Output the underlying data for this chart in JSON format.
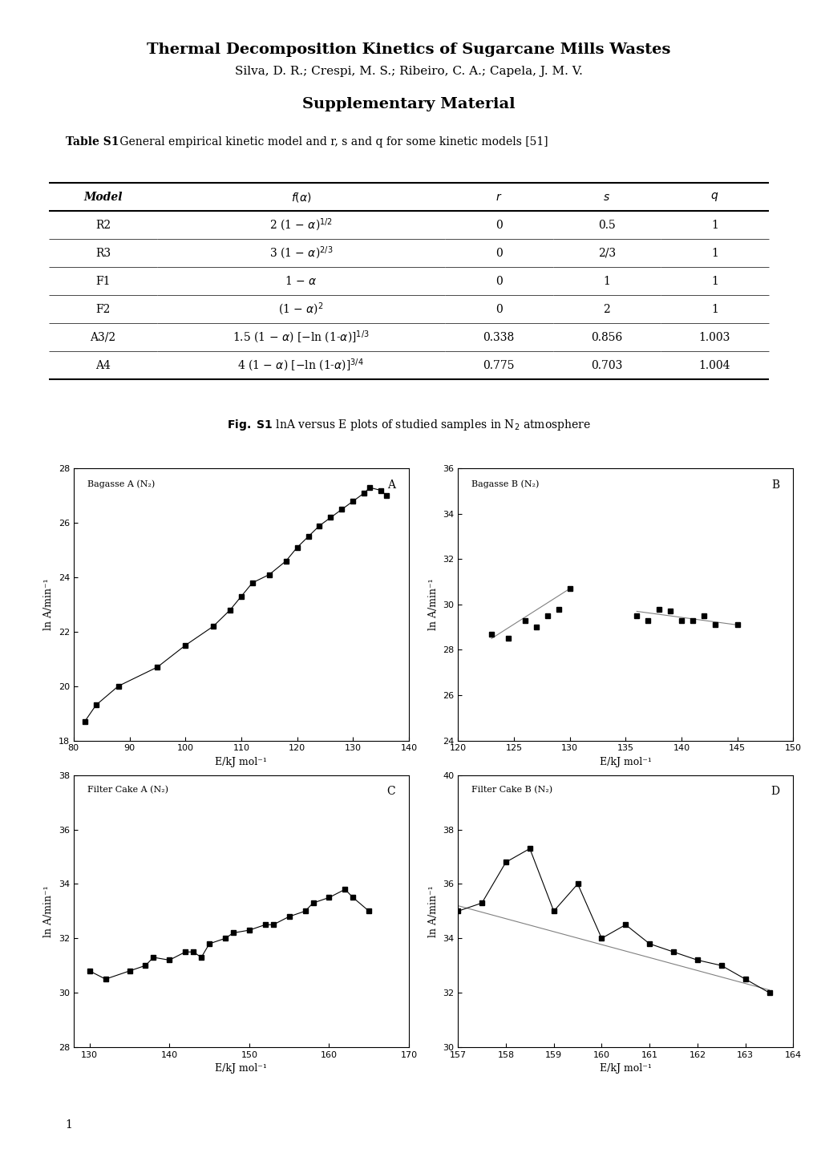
{
  "title": "Thermal Decomposition Kinetics of Sugarcane Mills Wastes",
  "authors": "Silva, D. R.; Crespi, M. S.; Ribeiro, C. A.; Capela, J. M. V.",
  "supp_title": "Supplementary Material",
  "table_caption_bold": "Table S1",
  "table_caption_normal": " General empirical kinetic model and r, s and q for some kinetic models [51]",
  "fig_caption": "Fig. S1 lnA versus E plots of studied samples in N₂ atmosphere",
  "plot_A": {
    "label": "Bagasse A (N₂)",
    "letter": "A",
    "x": [
      82,
      84,
      88,
      95,
      100,
      105,
      108,
      110,
      112,
      115,
      118,
      120,
      122,
      124,
      126,
      128,
      130,
      132,
      133,
      135,
      136
    ],
    "y": [
      18.7,
      19.3,
      20.0,
      20.7,
      21.5,
      22.2,
      22.8,
      23.3,
      23.8,
      24.1,
      24.6,
      25.1,
      25.5,
      25.9,
      26.2,
      26.5,
      26.8,
      27.1,
      27.3,
      27.2,
      27.0
    ],
    "xlim": [
      80,
      140
    ],
    "ylim": [
      18,
      28
    ],
    "xticks": [
      80,
      90,
      100,
      110,
      120,
      130,
      140
    ],
    "yticks": [
      18,
      20,
      22,
      24,
      26,
      28
    ],
    "xlabel": "E/kJ mol⁻¹",
    "ylabel": "ln A/min⁻¹"
  },
  "plot_B": {
    "label": "Bagasse B (N₂)",
    "letter": "B",
    "seg1_x": [
      123,
      124.5,
      126,
      127,
      128,
      129,
      130
    ],
    "seg1_y": [
      28.7,
      28.5,
      29.3,
      29.0,
      29.5,
      29.8,
      30.7
    ],
    "seg2_x": [
      136,
      137,
      138,
      139,
      140,
      141,
      142,
      143,
      145
    ],
    "seg2_y": [
      29.5,
      29.3,
      29.8,
      29.7,
      29.3,
      29.3,
      29.5,
      29.1,
      29.1
    ],
    "line1_x": [
      123,
      130
    ],
    "line1_y": [
      28.5,
      30.7
    ],
    "line2_x": [
      136,
      145
    ],
    "line2_y": [
      29.7,
      29.1
    ],
    "xlim": [
      120,
      150
    ],
    "ylim": [
      24,
      36
    ],
    "xticks": [
      120,
      125,
      130,
      135,
      140,
      145,
      150
    ],
    "yticks": [
      24,
      26,
      28,
      30,
      32,
      34,
      36
    ],
    "xlabel": "E/kJ mol⁻¹",
    "ylabel": "ln A/min⁻¹"
  },
  "plot_C": {
    "label": "Filter Cake A (N₂)",
    "letter": "C",
    "x": [
      130,
      132,
      135,
      137,
      138,
      140,
      142,
      143,
      144,
      145,
      147,
      148,
      150,
      152,
      153,
      155,
      157,
      158,
      160,
      162,
      163,
      165
    ],
    "y": [
      30.8,
      30.5,
      30.8,
      31.0,
      31.3,
      31.2,
      31.5,
      31.5,
      31.3,
      31.8,
      32.0,
      32.2,
      32.3,
      32.5,
      32.5,
      32.8,
      33.0,
      33.3,
      33.5,
      33.8,
      33.5,
      33.0
    ],
    "xlim": [
      128,
      170
    ],
    "ylim": [
      28,
      38
    ],
    "xticks": [
      130,
      140,
      150,
      160,
      170
    ],
    "yticks": [
      28,
      30,
      32,
      34,
      36,
      38
    ],
    "xlabel": "E/kJ mol⁻¹",
    "ylabel": "ln A/min⁻¹"
  },
  "plot_D": {
    "label": "Filter Cake B (N₂)",
    "letter": "D",
    "x": [
      157,
      157.5,
      158,
      158.5,
      159,
      159.5,
      160,
      160.5,
      161,
      161.5,
      162,
      162.5,
      163,
      163.5
    ],
    "y": [
      35.0,
      35.3,
      36.8,
      37.3,
      35.0,
      36.0,
      34.0,
      34.5,
      33.8,
      33.5,
      33.2,
      33.0,
      32.5,
      32.0
    ],
    "line1_x": [
      157,
      163.5
    ],
    "line1_y": [
      35.2,
      32.1
    ],
    "xlim": [
      157,
      164
    ],
    "ylim": [
      30,
      40
    ],
    "xticks": [
      157,
      158,
      159,
      160,
      161,
      162,
      163,
      164
    ],
    "yticks": [
      30,
      32,
      34,
      36,
      38,
      40
    ],
    "xlabel": "E/kJ mol⁻¹",
    "ylabel": "ln A/min⁻¹"
  },
  "page_number": "1"
}
